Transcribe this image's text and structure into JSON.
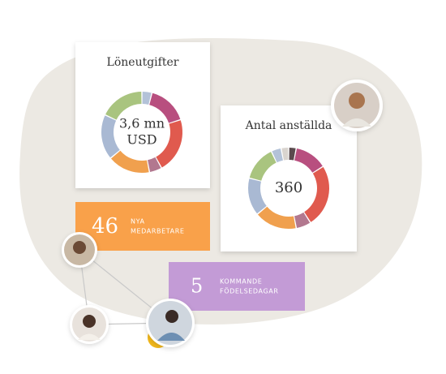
{
  "cards": [
    {
      "title": "Löneutgifter",
      "center": [
        "3,6 mn",
        "USD"
      ],
      "segments": [
        {
          "value": 4,
          "color": "#b3c2d8"
        },
        {
          "value": 16,
          "color": "#b84f7f"
        },
        {
          "value": 22,
          "color": "#e05a4e"
        },
        {
          "value": 5,
          "color": "#b2788f"
        },
        {
          "value": 17,
          "color": "#f0a04e"
        },
        {
          "value": 18,
          "color": "#a9b9d3"
        },
        {
          "value": 18,
          "color": "#a9c47f"
        }
      ]
    },
    {
      "title": "Antal anställda",
      "center": [
        360
      ],
      "segments": [
        {
          "value": 3,
          "color": "#5a4a4e"
        },
        {
          "value": 13,
          "color": "#b84f7f"
        },
        {
          "value": 25,
          "color": "#e05a4e"
        },
        {
          "value": 6,
          "color": "#b2788f"
        },
        {
          "value": 17,
          "color": "#f0a04e"
        },
        {
          "value": 15,
          "color": "#a9b9d3"
        },
        {
          "value": 14,
          "color": "#a9c47f"
        },
        {
          "value": 4,
          "color": "#b3c2d8"
        },
        {
          "value": 3,
          "color": "#d9d4cf"
        }
      ]
    }
  ],
  "stats": [
    {
      "number": 46,
      "label": [
        "NYA",
        "MEDARBETARE"
      ],
      "color": "#f9a14a"
    },
    {
      "number": 5,
      "label": [
        "KOMMANDE",
        "FÖDELSEDAGAR"
      ],
      "color": "#c39bd6"
    }
  ]
}
